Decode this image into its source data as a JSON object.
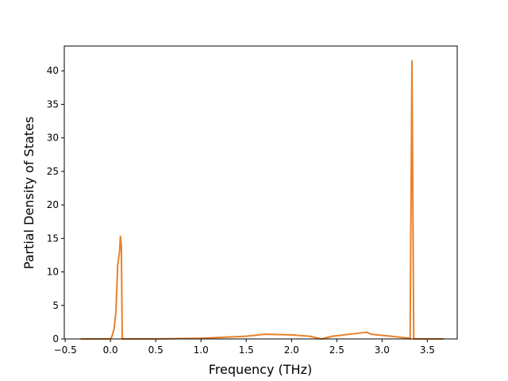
{
  "chart_data": {
    "type": "line",
    "xlabel": "Frequency (THz)",
    "ylabel": "Partial Density of States",
    "x": [
      -0.33,
      0.0,
      0.02,
      0.04,
      0.06,
      0.08,
      0.1,
      0.11,
      0.12,
      0.13,
      0.5,
      1.0,
      1.5,
      1.7,
      2.0,
      2.2,
      2.33,
      2.45,
      2.83,
      2.88,
      3.1,
      3.3,
      3.31,
      3.33,
      3.35,
      3.68
    ],
    "series": [
      {
        "color": "#e8812b",
        "values": [
          0,
          0,
          0.5,
          1.5,
          4,
          11,
          13,
          15.3,
          14,
          0,
          0,
          0.1,
          0.4,
          0.7,
          0.6,
          0.4,
          0,
          0.4,
          1.0,
          0.7,
          0.4,
          0.1,
          0,
          41.5,
          0,
          0
        ]
      }
    ],
    "xlim": [
      -0.51,
      3.83
    ],
    "ylim": [
      0,
      43.7
    ],
    "xticks": [
      {
        "value": -0.5,
        "label": "−0.5"
      },
      {
        "value": 0,
        "label": "0.0"
      },
      0.5,
      {
        "value": 1,
        "label": "1.0"
      },
      1.5,
      {
        "value": 2,
        "label": "2.0"
      },
      2.5,
      {
        "value": 3,
        "label": "3.0"
      },
      3.5
    ],
    "yticks": [
      0,
      5,
      10,
      15,
      20,
      25,
      30,
      35,
      40
    ]
  }
}
